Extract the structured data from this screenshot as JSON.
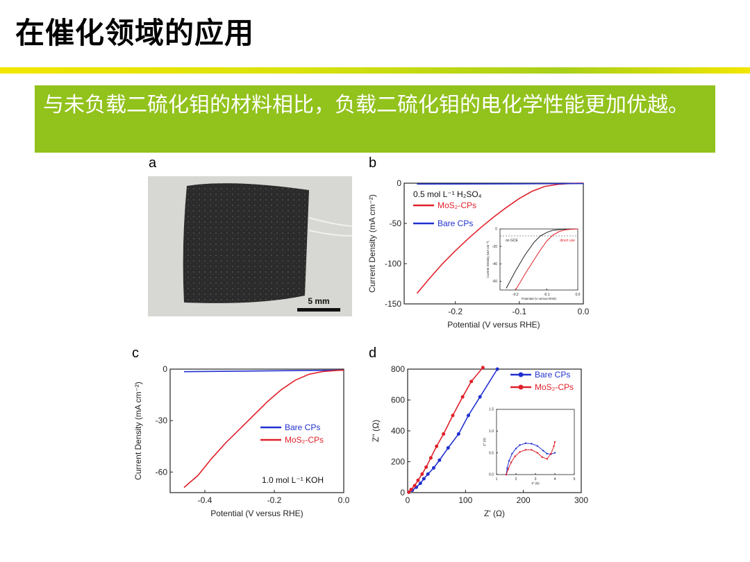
{
  "slide": {
    "title": "在催化领域的应用",
    "callout": "与未负载二硫化钼的材料相比，负载二硫化钼的电化学性能更加优越。",
    "accent_color": "#92c21c",
    "bar_colors": [
      "#f2e600",
      "#a8cf1a"
    ]
  },
  "panels": {
    "a": {
      "label": "a",
      "scale_bar": "5 mm"
    },
    "b": {
      "label": "b"
    },
    "c": {
      "label": "c"
    },
    "d": {
      "label": "d"
    }
  },
  "chart_data": [
    {
      "id": "b",
      "type": "line",
      "xlabel": "Potential (V versus RHE)",
      "ylabel": "Current Density (mA cm⁻²)",
      "xlim": [
        -0.28,
        0.0
      ],
      "ylim": [
        -150,
        0
      ],
      "xticks": [
        -0.2,
        -0.1,
        0.0
      ],
      "yticks": [
        0,
        -50,
        -100,
        -150
      ],
      "xtick_labels": [
        "-0.2",
        "-0.1",
        "0.0"
      ],
      "ytick_labels": [
        "0",
        "-50",
        "-100",
        "-150"
      ],
      "annotation": "0.5 mol L⁻¹ H₂SO₄",
      "series": [
        {
          "name": "MoS₂-CPs",
          "color": "#e0202a",
          "x": [
            -0.26,
            -0.24,
            -0.22,
            -0.2,
            -0.18,
            -0.16,
            -0.14,
            -0.12,
            -0.1,
            -0.08,
            -0.06,
            -0.04,
            -0.02,
            0.0
          ],
          "y": [
            -137,
            -118,
            -100,
            -84,
            -69,
            -55,
            -42,
            -30,
            -19,
            -10,
            -4,
            -1.5,
            -0.4,
            0
          ]
        },
        {
          "name": "Bare CPs",
          "color": "#2030d0",
          "x": [
            -0.26,
            -0.2,
            -0.1,
            0.0
          ],
          "y": [
            -1,
            -1,
            -0.8,
            -0.5
          ]
        }
      ],
      "inset": {
        "xlabel": "Potential (V versus RHE)",
        "ylabel": "Current Density (mA cm⁻²)",
        "xlim": [
          -0.25,
          0.0
        ],
        "ylim": [
          -70,
          0
        ],
        "xtick_labels": [
          "-0.2",
          "-0.1",
          "0.0"
        ],
        "ytick_labels": [
          "0",
          "-20",
          "-40",
          "-60"
        ],
        "annotations": [
          "on GCE",
          "direct use"
        ],
        "series": [
          {
            "name": "on GCE",
            "color": "#222222",
            "x": [
              -0.23,
              -0.2,
              -0.17,
              -0.14,
              -0.12,
              -0.1,
              -0.08,
              -0.05,
              -0.02,
              0.0
            ],
            "y": [
              -68,
              -48,
              -30,
              -15,
              -8,
              -4,
              -1.5,
              -0.5,
              -0.1,
              0
            ]
          },
          {
            "name": "direct use",
            "color": "#e0202a",
            "x": [
              -0.2,
              -0.17,
              -0.14,
              -0.12,
              -0.1,
              -0.08,
              -0.06,
              -0.04,
              -0.02,
              0.0
            ],
            "y": [
              -70,
              -52,
              -35,
              -24,
              -14,
              -7,
              -3,
              -1,
              -0.3,
              0
            ]
          }
        ]
      }
    },
    {
      "id": "c",
      "type": "line",
      "xlabel": "Potential (V versus RHE)",
      "ylabel": "Current Density (mA cm⁻²)",
      "xlim": [
        -0.5,
        0.0
      ],
      "ylim": [
        -72,
        0
      ],
      "xticks": [
        -0.4,
        -0.2,
        0.0
      ],
      "yticks": [
        0,
        -30,
        -60
      ],
      "xtick_labels": [
        "-0.4",
        "-0.2",
        "0.0"
      ],
      "ytick_labels": [
        "0",
        "-30",
        "-60"
      ],
      "annotation": "1.0 mol L⁻¹ KOH",
      "series": [
        {
          "name": "Bare CPs",
          "color": "#2030d0",
          "x": [
            -0.46,
            -0.3,
            -0.1,
            0.0
          ],
          "y": [
            -1.5,
            -1.2,
            -0.8,
            -0.6
          ]
        },
        {
          "name": "MoS₂-CPs",
          "color": "#e0202a",
          "x": [
            -0.46,
            -0.42,
            -0.38,
            -0.34,
            -0.3,
            -0.26,
            -0.22,
            -0.18,
            -0.14,
            -0.1,
            -0.06,
            -0.02,
            0.0
          ],
          "y": [
            -69,
            -62,
            -52,
            -43,
            -35,
            -27,
            -19,
            -12,
            -6.5,
            -3,
            -1.4,
            -0.8,
            -0.6
          ]
        }
      ]
    },
    {
      "id": "d",
      "type": "scatter",
      "xlabel": "Z' (Ω)",
      "ylabel": "Z'' (Ω)",
      "xlim": [
        0,
        300
      ],
      "ylim": [
        0,
        800
      ],
      "xticks": [
        0,
        100,
        200,
        300
      ],
      "yticks": [
        0,
        200,
        400,
        600,
        800
      ],
      "xtick_labels": [
        "0",
        "100",
        "200",
        "300"
      ],
      "ytick_labels": [
        "0",
        "200",
        "400",
        "600",
        "800"
      ],
      "series": [
        {
          "name": "Bare CPs",
          "color": "#2030d0",
          "x": [
            2,
            8,
            15,
            22,
            28,
            35,
            45,
            55,
            70,
            88,
            105,
            125,
            155
          ],
          "y": [
            3,
            15,
            35,
            60,
            90,
            120,
            160,
            210,
            290,
            380,
            500,
            620,
            800
          ]
        },
        {
          "name": "MoS₂-CPs",
          "color": "#e0202a",
          "x": [
            2,
            6,
            12,
            18,
            25,
            32,
            40,
            50,
            62,
            78,
            95,
            110,
            130
          ],
          "y": [
            3,
            20,
            45,
            80,
            120,
            165,
            225,
            300,
            380,
            500,
            620,
            720,
            810
          ]
        }
      ],
      "inset": {
        "xlabel": "Z' (Ω)",
        "ylabel": "Z'' (Ω)",
        "xlim": [
          1,
          5
        ],
        "ylim": [
          0,
          1.5
        ],
        "xtick_labels": [
          "1",
          "2",
          "3",
          "4",
          "5"
        ],
        "ytick_labels": [
          "0.0",
          "0.5",
          "1.0",
          "1.5"
        ],
        "series": [
          {
            "name": "Bare CPs",
            "color": "#2030d0",
            "x": [
              1.5,
              1.55,
              1.65,
              1.8,
              2.0,
              2.2,
              2.5,
              2.8,
              3.1,
              3.4,
              3.6,
              3.8,
              4.0
            ],
            "y": [
              0.0,
              0.15,
              0.32,
              0.48,
              0.6,
              0.68,
              0.72,
              0.71,
              0.66,
              0.55,
              0.48,
              0.47,
              0.5
            ]
          },
          {
            "name": "MoS₂-CPs",
            "color": "#e0202a",
            "x": [
              1.5,
              1.6,
              1.75,
              1.95,
              2.2,
              2.5,
              2.8,
              3.1,
              3.35,
              3.6,
              3.8,
              3.95,
              4.0
            ],
            "y": [
              0.0,
              0.12,
              0.28,
              0.42,
              0.52,
              0.57,
              0.57,
              0.5,
              0.4,
              0.36,
              0.48,
              0.65,
              0.75
            ]
          }
        ]
      }
    }
  ]
}
